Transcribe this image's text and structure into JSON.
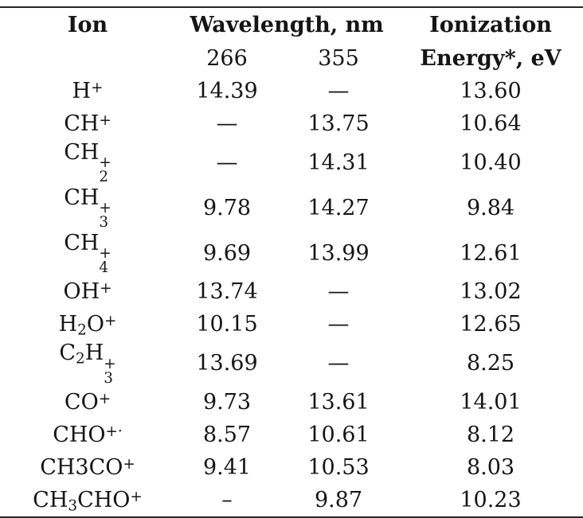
{
  "colors": {
    "background": "#ffffff",
    "text": "#151515",
    "rule": "#272727"
  },
  "table": {
    "headers": {
      "ion": "Ion",
      "wavelength": "Wavelength, nm",
      "ionization_line1": "Ionization",
      "ionization_line2": "Energy*, eV"
    },
    "subheaders": {
      "wl266": "266",
      "wl355": "355"
    },
    "rows": [
      {
        "ion": "H+",
        "formula": [
          {
            "text": "H"
          },
          {
            "sup": "+"
          }
        ],
        "wl266": "14.39",
        "wl355": "—",
        "energy": "13.60"
      },
      {
        "ion": "CH+",
        "formula": [
          {
            "text": "CH"
          },
          {
            "sup": "+"
          }
        ],
        "wl266": "—",
        "wl355": "13.75",
        "energy": "10.64"
      },
      {
        "ion": "CH2+",
        "formula": [
          {
            "text": "CH"
          },
          {
            "stack": {
              "sup": "+",
              "sub": "2"
            }
          }
        ],
        "wl266": "—",
        "wl355": "14.31",
        "energy": "10.40"
      },
      {
        "ion": "CH3+",
        "formula": [
          {
            "text": "CH"
          },
          {
            "stack": {
              "sup": "+",
              "sub": "3"
            }
          }
        ],
        "wl266": "9.78",
        "wl355": "14.27",
        "energy": "9.84"
      },
      {
        "ion": "CH4+",
        "formula": [
          {
            "text": "CH"
          },
          {
            "stack": {
              "sup": "+",
              "sub": "4"
            }
          }
        ],
        "wl266": "9.69",
        "wl355": "13.99",
        "energy": "12.61"
      },
      {
        "ion": "OH+",
        "formula": [
          {
            "text": "OH"
          },
          {
            "sup": "+"
          }
        ],
        "wl266": "13.74",
        "wl355": "—",
        "energy": "13.02"
      },
      {
        "ion": "H2O+",
        "formula": [
          {
            "text": "H"
          },
          {
            "sub": "2"
          },
          {
            "text": "O"
          },
          {
            "sup": "+"
          }
        ],
        "wl266": "10.15",
        "wl355": "—",
        "energy": "12.65"
      },
      {
        "ion": "C2H3+",
        "formula": [
          {
            "text": "C"
          },
          {
            "sub": "2"
          },
          {
            "text": "H"
          },
          {
            "stack": {
              "sup": "+",
              "sub": "3"
            }
          }
        ],
        "wl266": "13.69",
        "wl355": "—",
        "energy": "8.25"
      },
      {
        "ion": "CO+",
        "formula": [
          {
            "text": "CO"
          },
          {
            "sup": "+"
          }
        ],
        "wl266": "9.73",
        "wl355": "13.61",
        "energy": "14.01"
      },
      {
        "ion": "CHO+.",
        "formula": [
          {
            "text": "CHO"
          },
          {
            "sup": "+·"
          }
        ],
        "wl266": "8.57",
        "wl355": "10.61",
        "energy": "8.12"
      },
      {
        "ion": "CH3CO+",
        "formula": [
          {
            "text": "CH3CO"
          },
          {
            "sup": "+"
          }
        ],
        "wl266": "9.41",
        "wl355": "10.53",
        "energy": "8.03"
      },
      {
        "ion": "CH3CHO+",
        "formula": [
          {
            "text": "CH"
          },
          {
            "sub": "3"
          },
          {
            "text": "CHO"
          },
          {
            "sup": "+"
          }
        ],
        "wl266": "–",
        "wl355": "9.87",
        "energy": "10.23"
      }
    ]
  }
}
